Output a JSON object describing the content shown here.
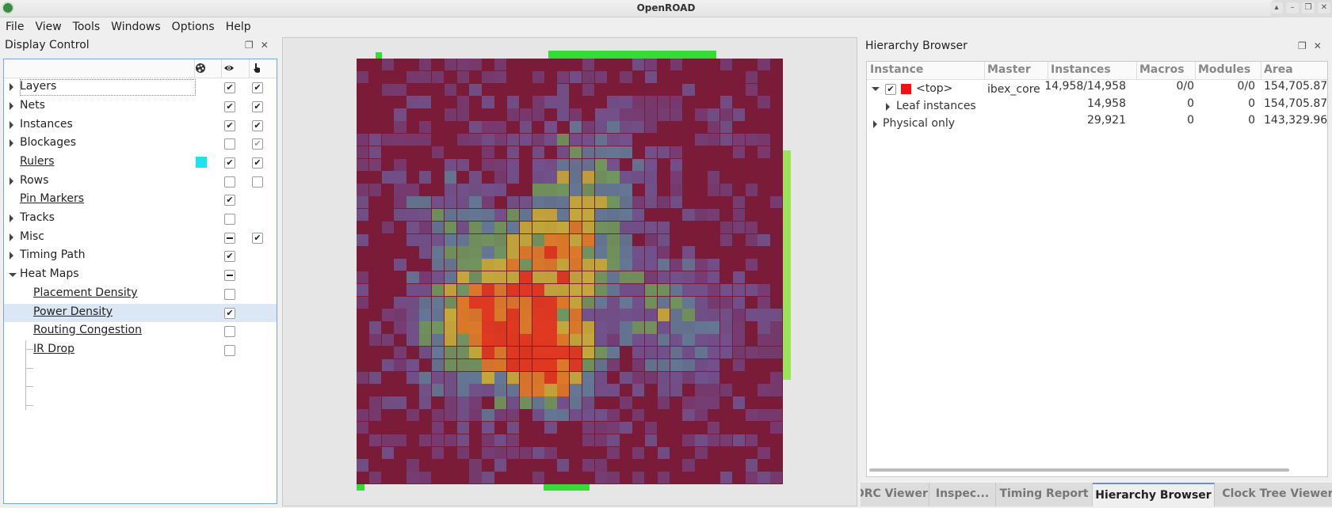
{
  "window": {
    "title": "OpenROAD",
    "controls": [
      "minimize",
      "maximize",
      "restore",
      "close"
    ]
  },
  "menu": [
    "File",
    "View",
    "Tools",
    "Windows",
    "Options",
    "Help"
  ],
  "display_control": {
    "title": "Display Control",
    "header_icons": [
      "palette-icon",
      "eye-icon",
      "pointer-icon"
    ],
    "rows": [
      {
        "label": "Layers",
        "expander": "collapsed",
        "visible": "checked",
        "selectable": "checked"
      },
      {
        "label": "Nets",
        "expander": "collapsed",
        "visible": "checked",
        "selectable": "checked"
      },
      {
        "label": "Instances",
        "expander": "collapsed",
        "visible": "checked",
        "selectable": "checked"
      },
      {
        "label": "Blockages",
        "expander": "collapsed",
        "visible": "unchecked",
        "selectable": "checked-dim"
      },
      {
        "label": "Rulers",
        "expander": "none",
        "color": "#1ee3ee",
        "visible": "checked",
        "selectable": "checked"
      },
      {
        "label": "Rows",
        "expander": "collapsed",
        "visible": "unchecked",
        "selectable": "unchecked"
      },
      {
        "label": "Pin Markers",
        "expander": "none",
        "visible": "checked"
      },
      {
        "label": "Tracks",
        "expander": "collapsed",
        "visible": "unchecked"
      },
      {
        "label": "Misc",
        "expander": "collapsed",
        "visible": "partial",
        "selectable": "checked"
      },
      {
        "label": "Timing Path",
        "expander": "collapsed",
        "visible": "checked"
      },
      {
        "label": "Heat Maps",
        "expander": "expanded",
        "visible": "partial"
      },
      {
        "label": "Placement Density",
        "child": true,
        "visible": "unchecked"
      },
      {
        "label": "Power Density",
        "child": true,
        "visible": "checked",
        "selected": true
      },
      {
        "label": "Routing Congestion",
        "child": true,
        "visible": "unchecked"
      },
      {
        "label": "IR Drop",
        "child": true,
        "visible": "unchecked"
      }
    ]
  },
  "hierarchy_browser": {
    "title": "Hierarchy Browser",
    "columns": [
      "Instance",
      "Master",
      "Instances",
      "Macros",
      "Modules",
      "Area"
    ],
    "rows": [
      {
        "instance": "<top>",
        "master": "ibex_core",
        "instances": "14,958/14,958",
        "macros": "0/0",
        "modules": "0/0",
        "area": "154,705.87"
      },
      {
        "instance": "Leaf instances",
        "master": "",
        "instances": "14,958",
        "macros": "0",
        "modules": "0",
        "area": "154,705.87"
      },
      {
        "instance": "Physical only",
        "master": "",
        "instances": "29,921",
        "macros": "0",
        "modules": "0",
        "area": "143,329.96"
      }
    ],
    "top_color": "#ee1111"
  },
  "tabs": [
    {
      "label": "DRC Viewer",
      "active": false
    },
    {
      "label": "Inspec...",
      "active": false
    },
    {
      "label": "Timing Report",
      "active": false
    },
    {
      "label": "Hierarchy Browser",
      "active": true
    },
    {
      "label": "Clock Tree Viewer",
      "active": false
    }
  ],
  "colors": {
    "selection": "#dbe7f5",
    "die_background": "#7d1a3b",
    "pins": "#33dd33",
    "active_tab_accent": "#6d8fc3"
  }
}
